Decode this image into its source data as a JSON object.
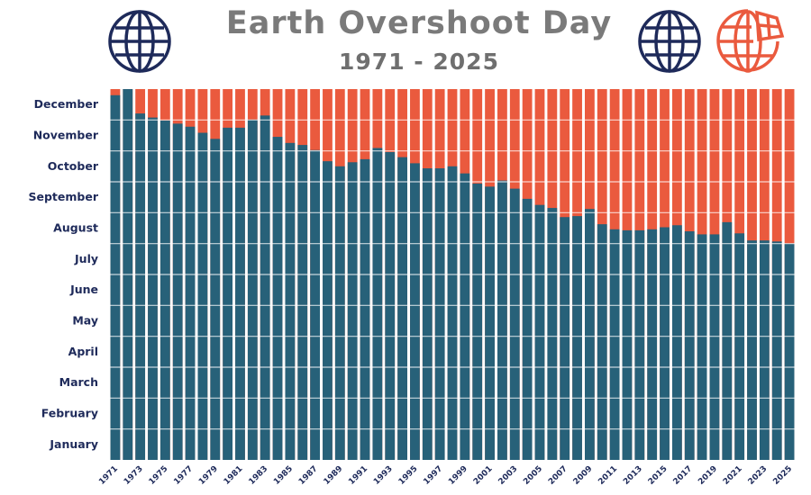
{
  "header": {
    "title": "Earth Overshoot Day",
    "subtitle": "1971 - 2025"
  },
  "icons": [
    "globe-icon",
    "globe-icon",
    "broken-globe-icon"
  ],
  "colors": {
    "overshoot_bar": "#276179",
    "remaining_year": "#ea5a3e",
    "title": "#7a7a7a",
    "labels": "#1e2a5a",
    "globe": "#1e2a5a",
    "broken_globe": "#ea5a3e"
  },
  "chart_data": {
    "type": "bar",
    "stacked": true,
    "title": "Earth Overshoot Day",
    "subtitle": "1971 - 2025",
    "y_axis_categories": [
      "January",
      "February",
      "March",
      "April",
      "May",
      "June",
      "July",
      "August",
      "September",
      "October",
      "November",
      "December"
    ],
    "ylim_day_of_year": [
      0,
      365
    ],
    "x_tick_labels": [
      "1971",
      "1973",
      "1975",
      "1977",
      "1979",
      "1981",
      "1983",
      "1985",
      "1987",
      "1989",
      "1991",
      "1993",
      "1995",
      "1997",
      "1999",
      "2001",
      "2003",
      "2005",
      "2007",
      "2009",
      "2011",
      "2013",
      "2015",
      "2017",
      "2019",
      "2021",
      "2023",
      "2025"
    ],
    "x": [
      1971,
      1972,
      1973,
      1974,
      1975,
      1976,
      1977,
      1978,
      1979,
      1980,
      1981,
      1982,
      1983,
      1984,
      1985,
      1986,
      1987,
      1988,
      1989,
      1990,
      1991,
      1992,
      1993,
      1994,
      1995,
      1996,
      1997,
      1998,
      1999,
      2000,
      2001,
      2002,
      2003,
      2004,
      2005,
      2006,
      2007,
      2008,
      2009,
      2010,
      2011,
      2012,
      2013,
      2014,
      2015,
      2016,
      2017,
      2018,
      2019,
      2020,
      2021,
      2022,
      2023,
      2024,
      2025
    ],
    "series": [
      {
        "values": [
          365,
          365,
          365,
          365,
          365,
          365,
          365,
          365,
          365,
          365,
          365,
          365,
          365,
          365,
          365,
          365,
          365,
          365,
          365,
          365,
          365,
          365,
          365,
          365,
          365,
          365,
          365,
          365,
          365,
          365,
          365,
          365,
          365,
          365,
          365,
          365,
          365,
          365,
          365,
          365,
          365,
          365,
          365,
          365,
          365,
          365,
          365,
          365,
          365,
          365,
          365,
          365,
          365,
          365,
          365
        ]
      },
      {
        "values": [
          359,
          365,
          341,
          337,
          334,
          331,
          328,
          322,
          316,
          327,
          327,
          335,
          339,
          318,
          312,
          310,
          305,
          294,
          289,
          293,
          296,
          307,
          303,
          298,
          292,
          287,
          287,
          289,
          282,
          272,
          269,
          275,
          267,
          257,
          251,
          248,
          239,
          240,
          247,
          232,
          227,
          226,
          226,
          227,
          229,
          231,
          225,
          222,
          222,
          234,
          223,
          216,
          216,
          215,
          213
        ]
      }
    ]
  }
}
